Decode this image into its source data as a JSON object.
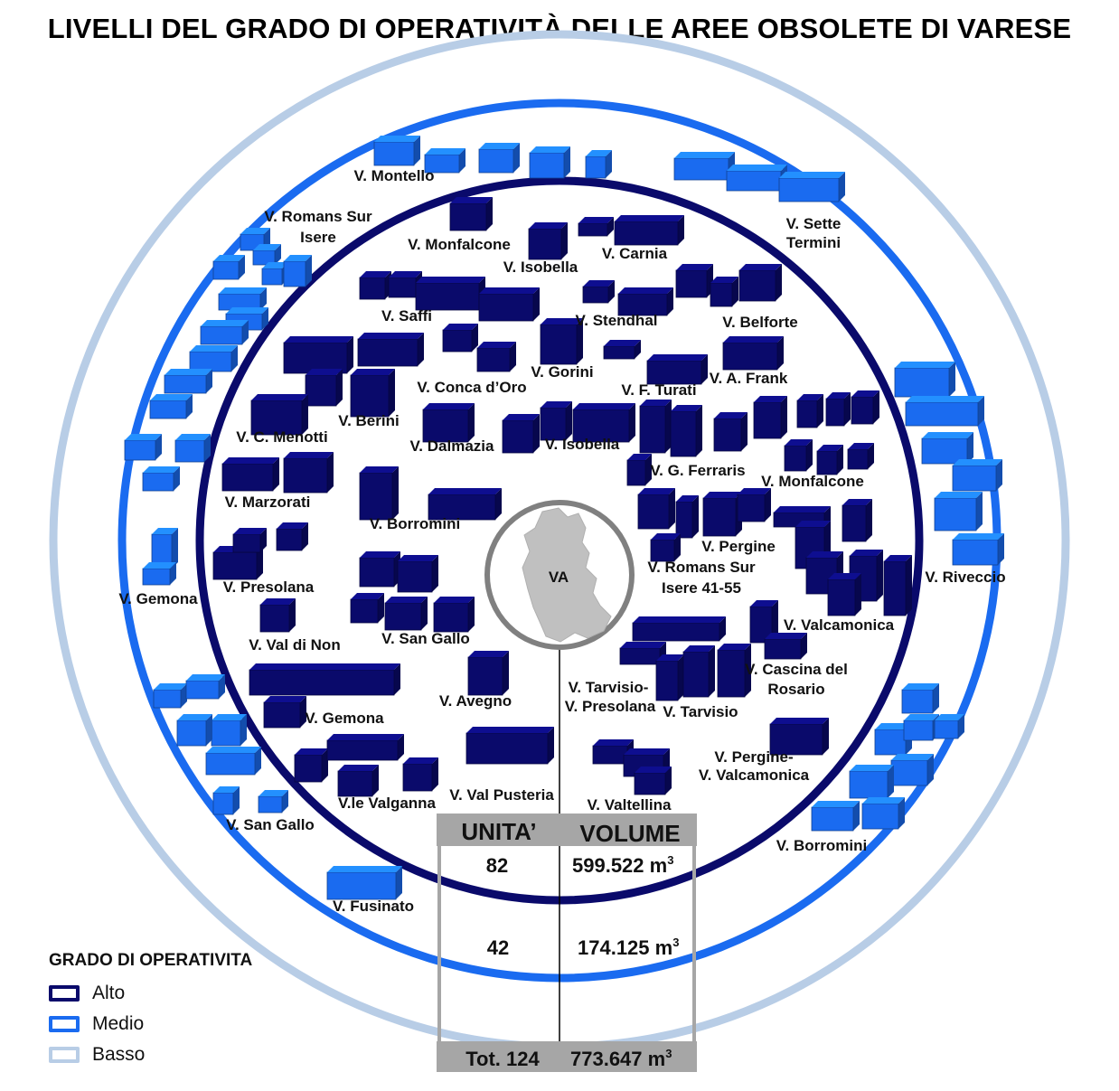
{
  "title": "LIVELLI DEL GRADO DI OPERATIVITÀ DELLE AREE OBSOLETE DI VARESE",
  "colors": {
    "alto": "#0a0a6b",
    "medio": "#1a6bf0",
    "basso": "#b8cde6",
    "center": "#808080",
    "table": "#a6a6a6"
  },
  "center_label": "VA",
  "labels_alto": [
    "V. Monfalcone",
    "V. Isobella",
    "V. Carnia",
    "V. Saffi",
    "V. Stendhal",
    "V. Belforte",
    "V. Gorini",
    "V. Conca d’Oro",
    "V. F. Turati",
    "V. A. Frank",
    "V. Berini",
    "V. C. Menotti",
    "V. Dalmazia",
    "V. Isobella",
    "V. G. Ferraris",
    "V. Monfalcone",
    "V. Marzorati",
    "V. Borromini",
    "V. Pergine",
    "V. Romans Sur",
    "Isere 41-55",
    "V. Presolana",
    "V. Valcamonica",
    "V. San Gallo",
    "V. Val di Non",
    "V. Cascina del",
    "Rosario",
    "V. Tarvisio-",
    "V. Presolana",
    "V. Tarvisio",
    "V. Avegno",
    "V. Gemona",
    "V. Pergine-",
    "V. Valcamonica",
    "V.le Valganna",
    "V. Val Pusteria",
    "V. Valtellina"
  ],
  "labels_medio": [
    "V. Montello",
    "V. Romans Sur",
    "Isere",
    "V. Sette",
    "Termini",
    "V. Riveccio",
    "V. Gemona",
    "V. San Gallo",
    "V. Borromini",
    "V. Fusinato"
  ],
  "table": {
    "headers": [
      "UNITA’",
      "VOLUME"
    ],
    "rows": [
      {
        "unita": "82",
        "volume": "599.522 m",
        "exp": "3"
      },
      {
        "unita": "42",
        "volume": "174.125 m",
        "exp": "3"
      }
    ],
    "total": {
      "unita": "Tot. 124",
      "volume": "773.647 m",
      "exp": "3"
    }
  },
  "legend": {
    "title": "GRADO DI OPERATIVITA",
    "items": [
      "Alto",
      "Medio",
      "Basso"
    ]
  }
}
